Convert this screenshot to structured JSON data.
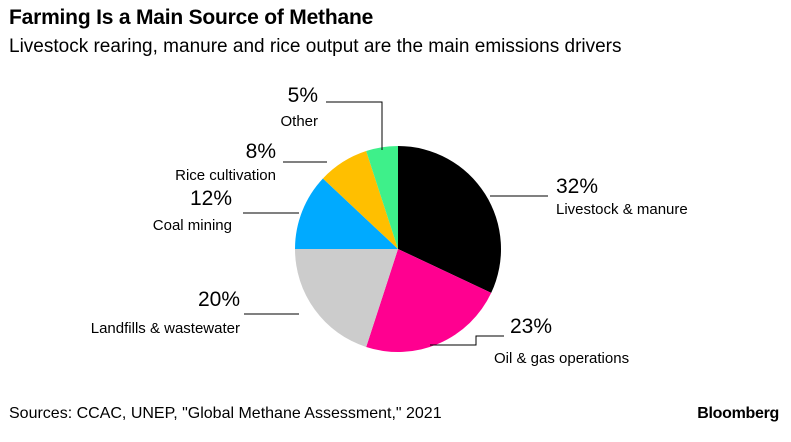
{
  "header": {
    "title": "Farming Is a Main Source of Methane",
    "subtitle": "Livestock rearing, manure and rice output are the main emissions drivers"
  },
  "footer": {
    "source": "Sources: CCAC, UNEP, \"Global Methane Assessment,\" 2021",
    "brand": "Bloomberg"
  },
  "chart_data": {
    "type": "pie",
    "title": "Farming Is a Main Source of Methane",
    "subtitle": "Livestock rearing, manure and rice output are the main emissions drivers",
    "slices": [
      {
        "label": "Livestock & manure",
        "value": 32,
        "display": "32%",
        "color": "#000000"
      },
      {
        "label": "Oil & gas operations",
        "value": 23,
        "display": "23%",
        "color": "#ff0090"
      },
      {
        "label": "Landfills & wastewater",
        "value": 20,
        "display": "20%",
        "color": "#cccccc"
      },
      {
        "label": "Coal mining",
        "value": 12,
        "display": "12%",
        "color": "#00aaff"
      },
      {
        "label": "Rice cultivation",
        "value": 8,
        "display": "8%",
        "color": "#ffbf00"
      },
      {
        "label": "Other",
        "value": 5,
        "display": "5%",
        "color": "#3ef08a"
      }
    ],
    "start_angle": "12 o'clock",
    "direction": "clockwise",
    "legend": "direct labels with leader lines"
  }
}
